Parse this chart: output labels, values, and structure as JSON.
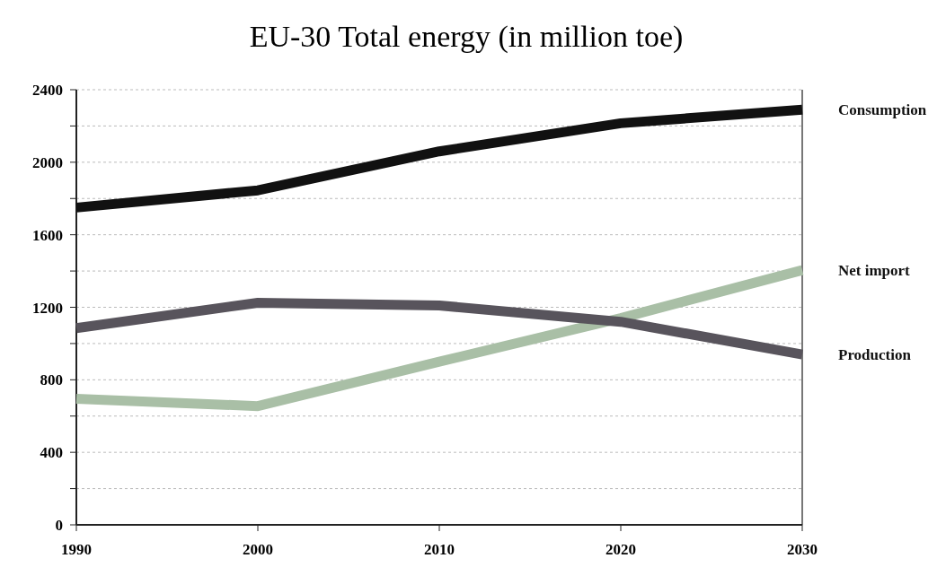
{
  "chart_data": {
    "type": "line",
    "title": "EU-30 Total energy (in million toe)",
    "x": [
      1990,
      2000,
      2010,
      2020,
      2030
    ],
    "xlim": [
      1990,
      2030
    ],
    "xticks": [
      1990,
      2000,
      2010,
      2020,
      2030
    ],
    "ylim": [
      0,
      2400
    ],
    "yticks": [
      0,
      {
        "value": 200,
        "label": null
      },
      400,
      {
        "value": 600,
        "label": null
      },
      800,
      {
        "value": 1000,
        "label": null
      },
      1200,
      {
        "value": 1400,
        "label": null
      },
      1600,
      {
        "value": 1800,
        "label": null
      },
      2000,
      {
        "value": 2200,
        "label": null
      },
      2400
    ],
    "grid": "y",
    "legend": false,
    "marker": "none",
    "series": [
      {
        "name": "Consumption",
        "color": "#111111",
        "values": [
          1750,
          1845,
          2060,
          2215,
          2290
        ]
      },
      {
        "name": "Net import",
        "color": "#a9bfa6",
        "values": [
          695,
          655,
          900,
          1140,
          1405
        ]
      },
      {
        "name": "Production",
        "color": "#58545c",
        "values": [
          1085,
          1225,
          1210,
          1120,
          940
        ]
      }
    ]
  }
}
